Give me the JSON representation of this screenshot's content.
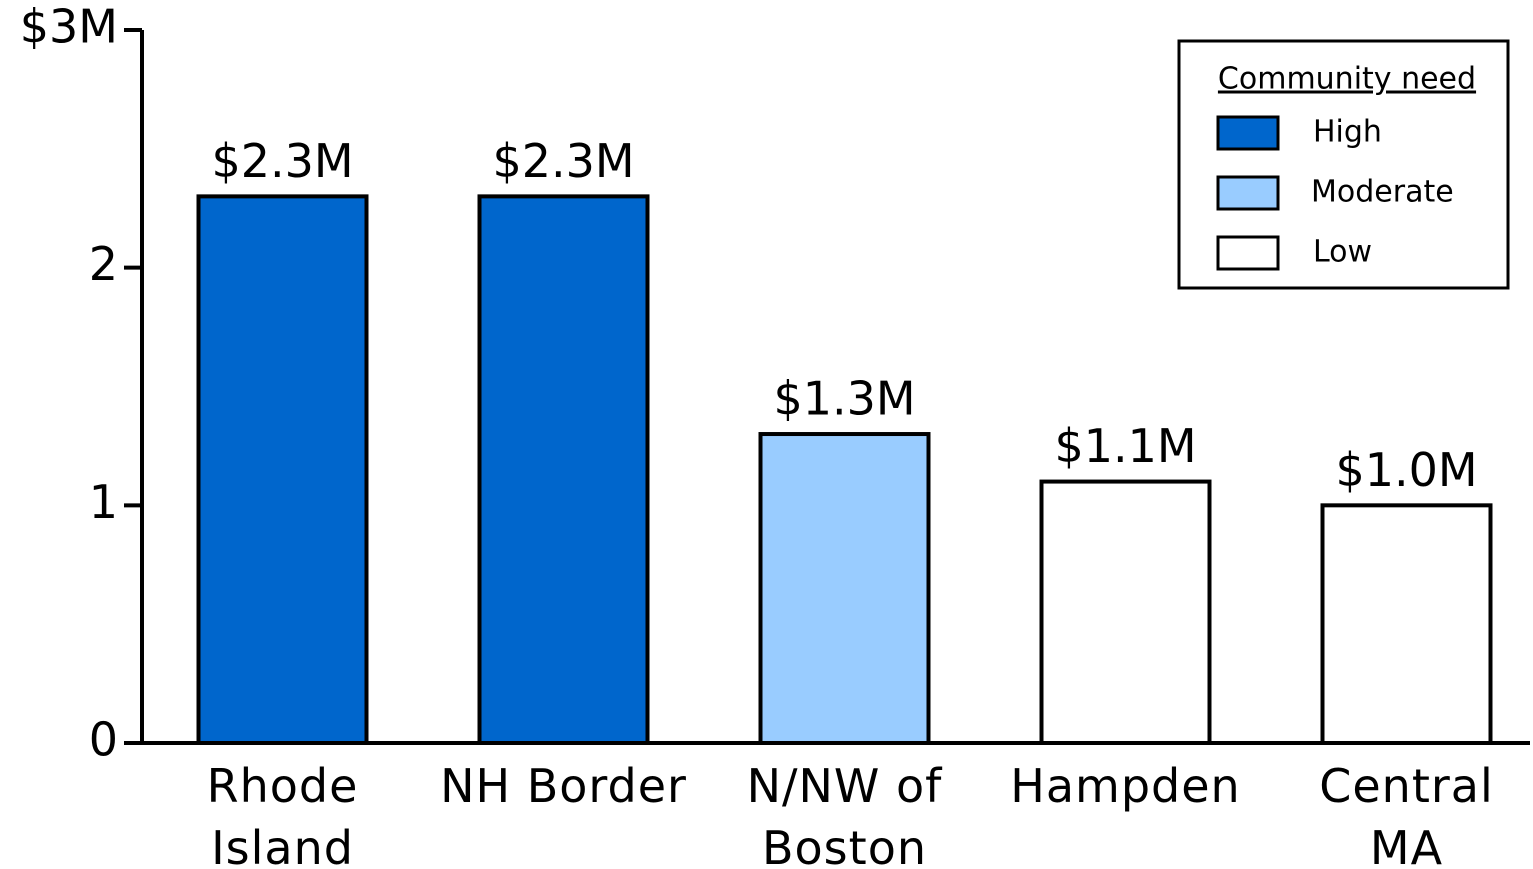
{
  "chart_data": {
    "type": "bar",
    "categories": [
      "Rhode\nIsland",
      "NH Border",
      "N/NW of\nBoston",
      "Hampden",
      "Central\nMA"
    ],
    "values": [
      2.3,
      2.3,
      1.3,
      1.1,
      1.0
    ],
    "value_labels": [
      "$2.3M",
      "$2.3M",
      "$1.3M",
      "$1.1M",
      "$1.0M"
    ],
    "colors": [
      "#0066cc",
      "#0066cc",
      "#99ccff",
      "#ffffff",
      "#ffffff"
    ],
    "ylim": [
      0,
      3
    ],
    "yticks": [
      0,
      1,
      2,
      {
        "value": 3,
        "label": "$3M"
      }
    ],
    "legend": {
      "title": "Community need",
      "position": "upper right",
      "items": [
        {
          "name": "High",
          "color": "#0066cc"
        },
        {
          "name": "Moderate",
          "color": "#99ccff"
        },
        {
          "name": "Low",
          "color": "#ffffff"
        }
      ]
    }
  }
}
